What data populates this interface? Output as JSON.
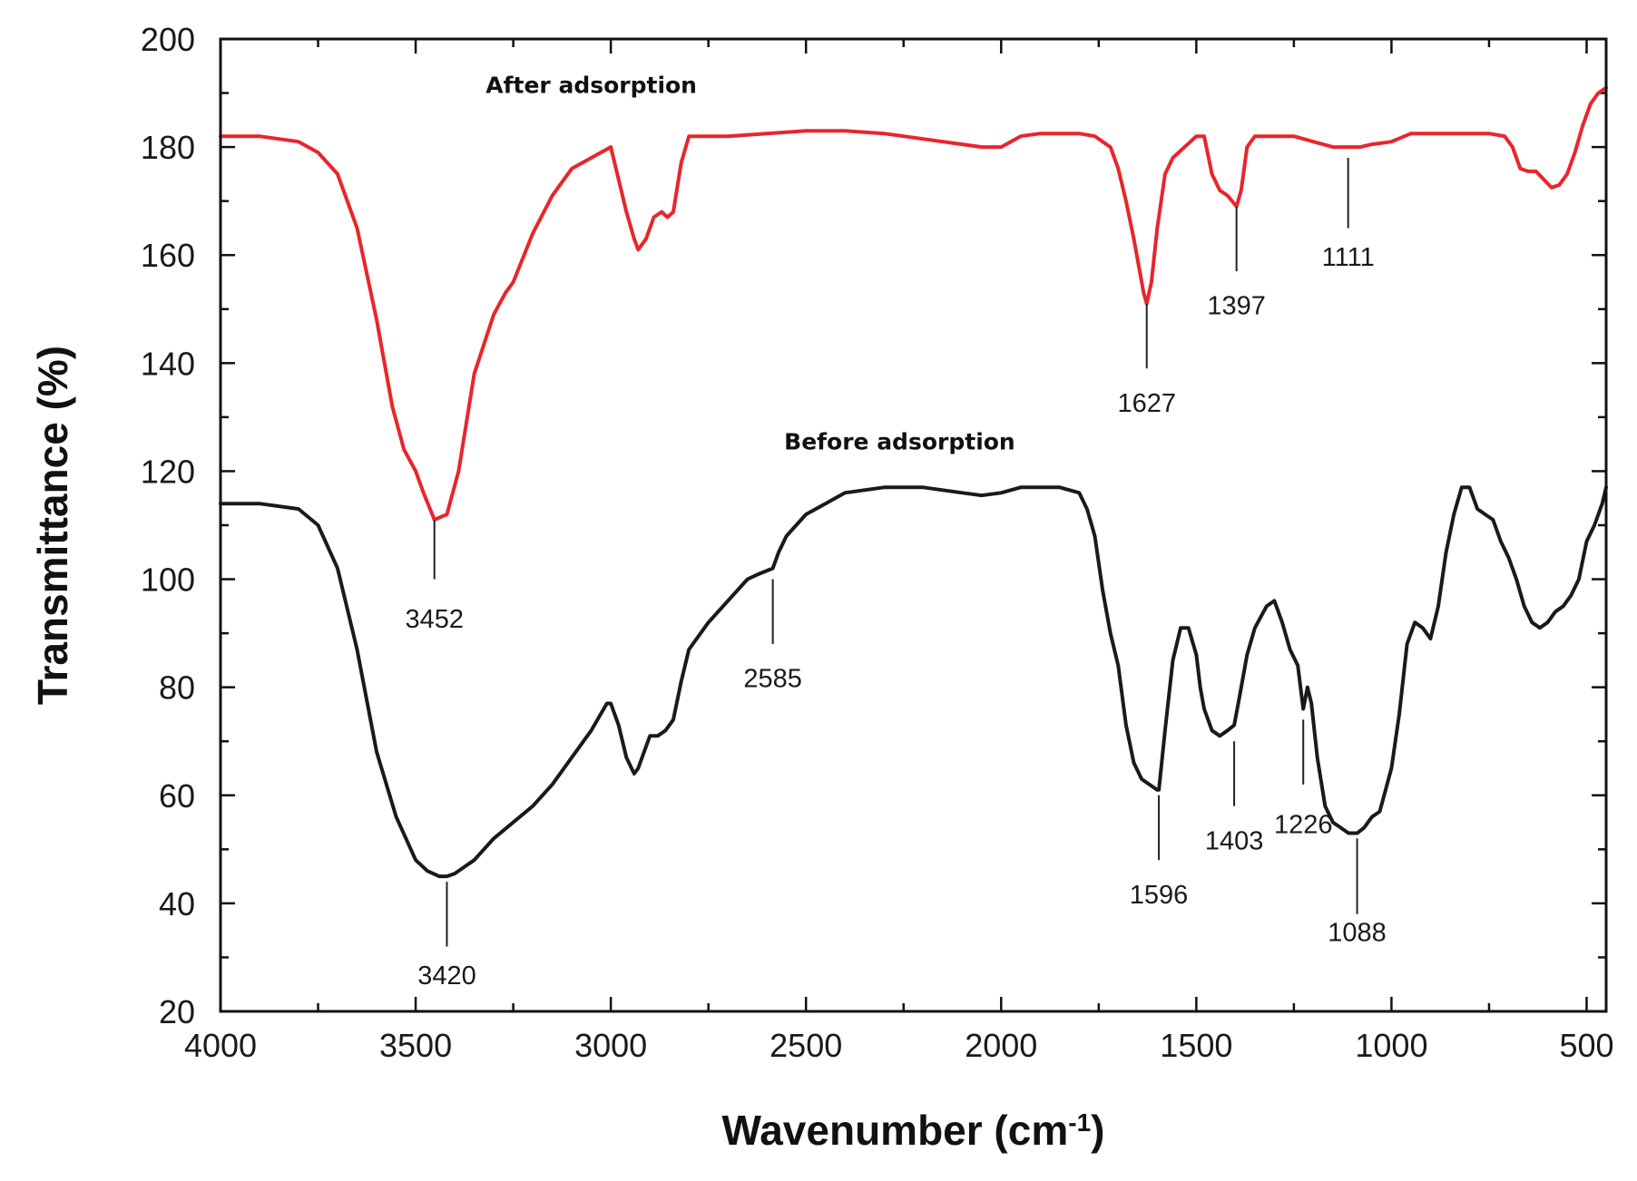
{
  "chart_data": {
    "type": "line",
    "title": "",
    "xlabel": "Wavenumber (cm",
    "xlabel_superscript": "-1",
    "xlabel_close": ")",
    "ylabel": "Transmittance (%)",
    "xlim": [
      4000,
      450
    ],
    "ylim": [
      20,
      200
    ],
    "xticks": [
      4000,
      3500,
      3000,
      2500,
      2000,
      1500,
      1000,
      500
    ],
    "xtick_labels": [
      "4000",
      "3500",
      "3000",
      "2500",
      "2000",
      "1500",
      "1000",
      "500"
    ],
    "yticks": [
      20,
      40,
      60,
      80,
      100,
      120,
      140,
      160,
      180,
      200
    ],
    "ytick_labels": [
      "20",
      "40",
      "60",
      "80",
      "100",
      "120",
      "140",
      "160",
      "180",
      "200"
    ],
    "series": [
      {
        "name": "After adsorption",
        "color": "#e8262b",
        "label_pos": [
          3050,
          190
        ],
        "x": [
          4000,
          3900,
          3800,
          3750,
          3700,
          3650,
          3600,
          3560,
          3530,
          3500,
          3480,
          3452,
          3420,
          3390,
          3350,
          3300,
          3270,
          3250,
          3200,
          3150,
          3100,
          3050,
          3000,
          2980,
          2960,
          2940,
          2930,
          2910,
          2890,
          2870,
          2855,
          2840,
          2820,
          2800,
          2700,
          2600,
          2500,
          2400,
          2300,
          2200,
          2100,
          2050,
          2000,
          1950,
          1900,
          1850,
          1800,
          1760,
          1720,
          1700,
          1680,
          1660,
          1645,
          1635,
          1627,
          1615,
          1600,
          1580,
          1560,
          1530,
          1500,
          1480,
          1460,
          1440,
          1420,
          1397,
          1385,
          1370,
          1350,
          1300,
          1250,
          1200,
          1150,
          1111,
          1080,
          1050,
          1000,
          950,
          900,
          850,
          800,
          750,
          710,
          690,
          670,
          650,
          630,
          610,
          590,
          570,
          550,
          530,
          510,
          490,
          470,
          450
        ],
        "y": [
          182,
          182,
          181,
          179,
          175,
          165,
          148,
          132,
          124,
          120,
          116,
          111,
          112,
          120,
          138,
          149,
          153,
          155,
          164,
          171,
          176,
          178,
          180,
          174,
          168,
          163,
          161,
          163,
          167,
          168,
          167,
          168,
          177,
          182,
          182,
          182.5,
          183,
          183,
          182.5,
          181.5,
          180.5,
          180,
          180,
          182,
          182.5,
          182.5,
          182.5,
          182,
          180,
          176,
          170,
          163,
          157,
          153,
          151,
          155,
          165,
          175,
          178,
          180,
          182,
          182,
          175,
          172,
          171,
          169,
          172,
          180,
          182,
          182,
          182,
          181,
          180,
          180,
          180,
          180.5,
          181,
          182.5,
          182.5,
          182.5,
          182.5,
          182.5,
          182,
          180,
          176,
          175.5,
          175.5,
          174,
          172.5,
          173,
          175,
          179,
          184,
          188,
          190,
          191
        ]
      },
      {
        "name": "Before adsorption",
        "color": "#1a1a1a",
        "label_pos": [
          2260,
          124
        ],
        "x": [
          4000,
          3900,
          3800,
          3750,
          3700,
          3650,
          3600,
          3550,
          3500,
          3470,
          3440,
          3420,
          3400,
          3350,
          3300,
          3250,
          3200,
          3150,
          3100,
          3050,
          3010,
          3000,
          2980,
          2960,
          2940,
          2930,
          2920,
          2900,
          2880,
          2860,
          2840,
          2820,
          2800,
          2750,
          2700,
          2650,
          2620,
          2585,
          2570,
          2550,
          2500,
          2450,
          2400,
          2300,
          2200,
          2100,
          2050,
          2000,
          1950,
          1900,
          1850,
          1800,
          1780,
          1760,
          1740,
          1720,
          1700,
          1680,
          1660,
          1640,
          1620,
          1600,
          1596,
          1580,
          1560,
          1540,
          1520,
          1500,
          1490,
          1480,
          1460,
          1440,
          1420,
          1403,
          1390,
          1370,
          1350,
          1320,
          1300,
          1280,
          1260,
          1240,
          1226,
          1215,
          1205,
          1190,
          1170,
          1150,
          1130,
          1110,
          1088,
          1070,
          1050,
          1030,
          1000,
          980,
          960,
          940,
          920,
          900,
          880,
          860,
          840,
          820,
          800,
          790,
          780,
          760,
          740,
          720,
          700,
          680,
          660,
          640,
          620,
          600,
          580,
          560,
          540,
          520,
          500,
          480,
          460,
          450
        ],
        "y": [
          114,
          114,
          113,
          110,
          102,
          87,
          68,
          56,
          48,
          46,
          45,
          45,
          45.5,
          48,
          52,
          55,
          58,
          62,
          67,
          72,
          77,
          77,
          73,
          67,
          64,
          65,
          67,
          71,
          71,
          72,
          74,
          81,
          87,
          92,
          96,
          100,
          101,
          102,
          105,
          108,
          112,
          114,
          116,
          117,
          117,
          116,
          115.5,
          116,
          117,
          117,
          117,
          116,
          113,
          108,
          98,
          90,
          84,
          73,
          66,
          63,
          62,
          61,
          61,
          72,
          85,
          91,
          91,
          86,
          80,
          76,
          72,
          71,
          72,
          73,
          78,
          86,
          91,
          95,
          96,
          92,
          87,
          84,
          76,
          80,
          77,
          67,
          58,
          55,
          54,
          53,
          53,
          54,
          56,
          57,
          65,
          75,
          88,
          92,
          91,
          89,
          95,
          105,
          112,
          117,
          117,
          115,
          113,
          112,
          111,
          107,
          104,
          100,
          95,
          92,
          91,
          92,
          94,
          95,
          97,
          100,
          107,
          110,
          114,
          117
        ]
      }
    ],
    "annotations": [
      {
        "label": "3452",
        "x": 3452,
        "y_top": 111,
        "y_bottom": 100,
        "label_y": 91
      },
      {
        "label": "1627",
        "x": 1627,
        "y_top": 151,
        "y_bottom": 139,
        "label_y": 131
      },
      {
        "label": "1397",
        "x": 1397,
        "y_top": 169,
        "y_bottom": 157,
        "label_y": 149
      },
      {
        "label": "1111",
        "x": 1111,
        "y_top": 178,
        "y_bottom": 165,
        "label_y": 158
      },
      {
        "label": "2585",
        "x": 2585,
        "y_top": 100,
        "y_bottom": 88,
        "label_y": 80
      },
      {
        "label": "3420",
        "x": 3420,
        "y_top": 44,
        "y_bottom": 32,
        "label_y": 25
      },
      {
        "label": "1596",
        "x": 1596,
        "y_top": 60,
        "y_bottom": 48,
        "label_y": 40
      },
      {
        "label": "1403",
        "x": 1403,
        "y_top": 70,
        "y_bottom": 58,
        "label_y": 50
      },
      {
        "label": "1226",
        "x": 1226,
        "y_top": 74,
        "y_bottom": 62,
        "label_y": 53
      },
      {
        "label": "1088",
        "x": 1088,
        "y_top": 52,
        "y_bottom": 38,
        "label_y": 33
      }
    ]
  }
}
